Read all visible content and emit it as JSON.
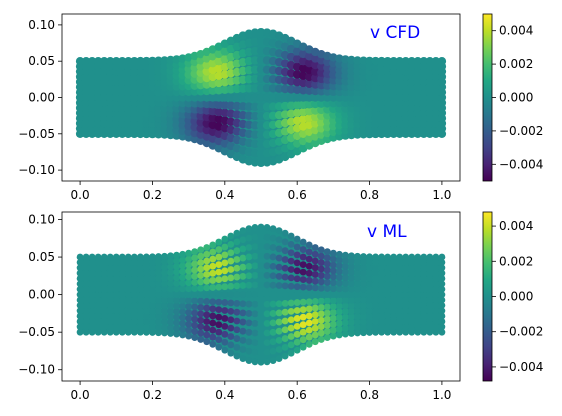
{
  "chart_data": [
    {
      "type": "heatmap",
      "title": "v CFD",
      "xlim": [
        -0.05,
        1.05
      ],
      "ylim": [
        -0.115,
        0.115
      ],
      "xticks": [
        0.0,
        0.2,
        0.4,
        0.6,
        0.8,
        1.0
      ],
      "xtick_labels": [
        "0.0",
        "0.2",
        "0.4",
        "0.6",
        "0.8",
        "1.0"
      ],
      "yticks": [
        -0.1,
        -0.05,
        0.0,
        0.05,
        0.1
      ],
      "ytick_labels": [
        "−0.10",
        "−0.05",
        "0.00",
        "0.05",
        "0.10"
      ],
      "colorbar": {
        "colormap": "viridis",
        "range": [
          -0.005,
          0.005
        ],
        "ticks": [
          -0.004,
          -0.002,
          0.0,
          0.002,
          0.004
        ],
        "tick_labels": [
          "−0.004",
          "−0.002",
          "0.000",
          "0.002",
          "0.004"
        ]
      },
      "domain": {
        "x_range": [
          0.0,
          1.0
        ],
        "half_width_ends": 0.05,
        "half_width_middle": 0.09,
        "bulge_center_x": 0.5
      },
      "extrema": [
        {
          "x": 0.38,
          "y": 0.035,
          "v": 0.004
        },
        {
          "x": 0.38,
          "y": -0.035,
          "v": -0.005
        },
        {
          "x": 0.62,
          "y": 0.035,
          "v": -0.005
        },
        {
          "x": 0.62,
          "y": -0.035,
          "v": 0.004
        }
      ],
      "marker_style": "scatter-dots"
    },
    {
      "type": "heatmap",
      "title": "v ML",
      "xlim": [
        -0.05,
        1.05
      ],
      "ylim": [
        -0.115,
        0.11
      ],
      "xticks": [
        0.0,
        0.2,
        0.4,
        0.6,
        0.8,
        1.0
      ],
      "xtick_labels": [
        "0.0",
        "0.2",
        "0.4",
        "0.6",
        "0.8",
        "1.0"
      ],
      "yticks": [
        -0.1,
        -0.05,
        0.0,
        0.05,
        0.1
      ],
      "ytick_labels": [
        "−0.10",
        "−0.05",
        "0.00",
        "0.05",
        "0.10"
      ],
      "colorbar": {
        "colormap": "viridis",
        "range": [
          -0.0048,
          0.0048
        ],
        "ticks": [
          -0.004,
          -0.002,
          0.0,
          0.002,
          0.004
        ],
        "tick_labels": [
          "−0.004",
          "−0.002",
          "0.000",
          "0.002",
          "0.004"
        ]
      },
      "domain": {
        "x_range": [
          0.0,
          1.0
        ],
        "half_width_ends": 0.05,
        "half_width_middle": 0.09,
        "bulge_center_x": 0.5
      },
      "extrema": [
        {
          "x": 0.38,
          "y": 0.035,
          "v": 0.004
        },
        {
          "x": 0.38,
          "y": -0.035,
          "v": -0.0045
        },
        {
          "x": 0.62,
          "y": 0.035,
          "v": -0.0045
        },
        {
          "x": 0.62,
          "y": -0.035,
          "v": 0.0045
        }
      ],
      "marker_style": "smooth"
    }
  ]
}
